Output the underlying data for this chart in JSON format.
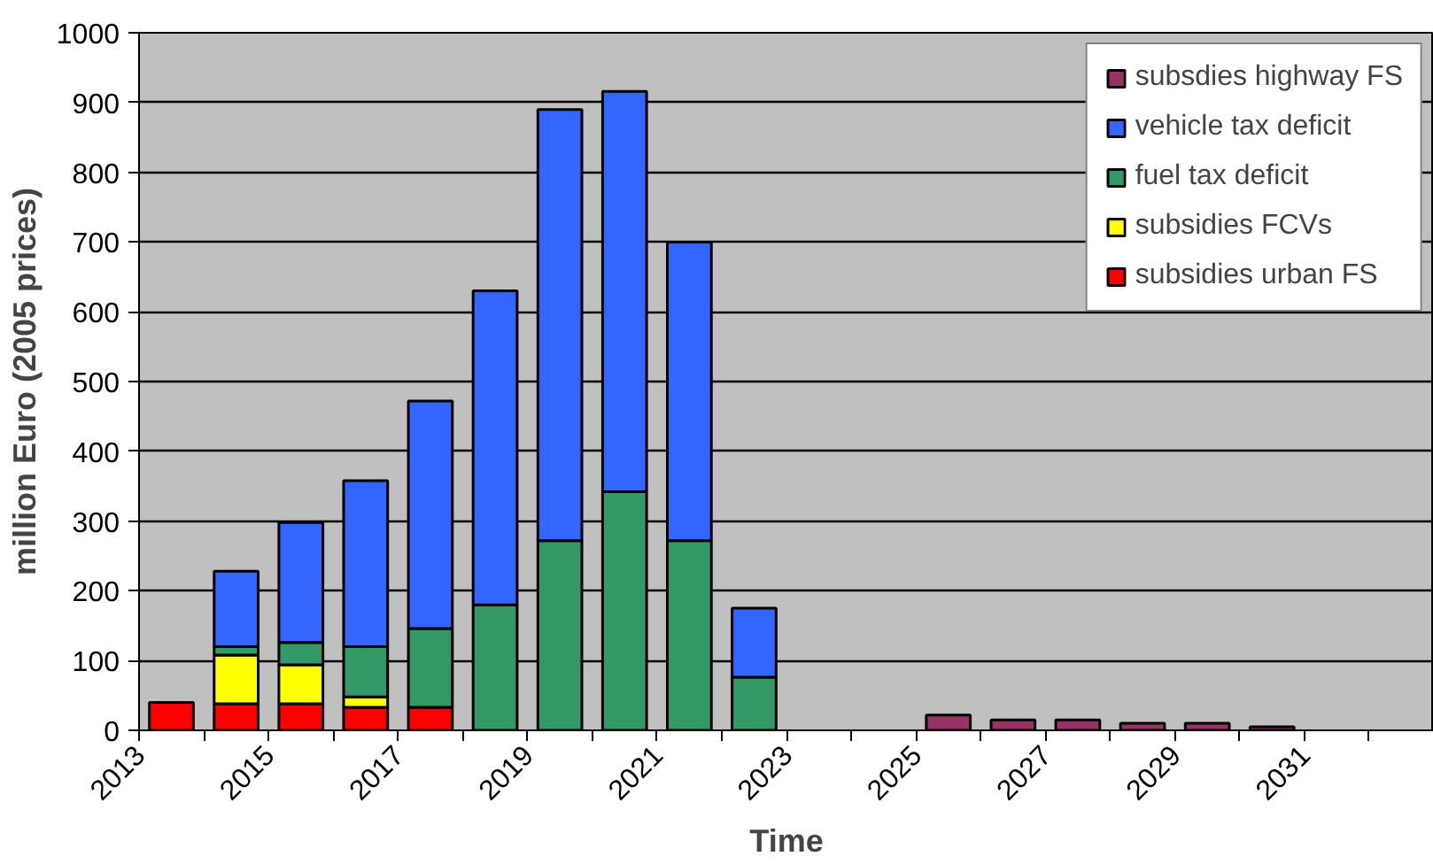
{
  "chart_data": {
    "type": "bar",
    "stacked": true,
    "xlabel": "Time",
    "ylabel": "million Euro (2005 prices)",
    "categories": [
      "2013",
      null,
      "2015",
      null,
      "2017",
      null,
      "2019",
      null,
      "2021",
      null,
      "2023",
      null,
      "2025",
      null,
      "2027",
      null,
      "2029",
      null,
      "2031",
      null
    ],
    "series": [
      {
        "name": "subsidies urban FS",
        "color": "#ff0000",
        "values": [
          40,
          38,
          38,
          33,
          33,
          null,
          null,
          null,
          null,
          null,
          null,
          null,
          null,
          null,
          null,
          null,
          null,
          null,
          null,
          null
        ]
      },
      {
        "name": "subsidies FCVs",
        "color": "#ffff00",
        "values": [
          null,
          70,
          56,
          15,
          null,
          null,
          null,
          null,
          null,
          null,
          null,
          null,
          null,
          null,
          null,
          null,
          null,
          null,
          null,
          null
        ]
      },
      {
        "name": "fuel tax deficit",
        "color": "#339966",
        "values": [
          null,
          12,
          32,
          72,
          113,
          180,
          272,
          342,
          272,
          76,
          null,
          null,
          null,
          null,
          null,
          null,
          null,
          null,
          null,
          null
        ]
      },
      {
        "name": "vehicle tax deficit",
        "color": "#3366ff",
        "values": [
          null,
          108,
          172,
          238,
          326,
          450,
          618,
          574,
          428,
          99,
          null,
          null,
          null,
          null,
          null,
          null,
          null,
          null,
          null,
          null
        ]
      },
      {
        "name": "subsdies highway FS",
        "color": "#993366",
        "values": [
          null,
          null,
          null,
          null,
          null,
          null,
          null,
          null,
          null,
          null,
          null,
          null,
          22,
          15,
          15,
          10,
          10,
          5,
          null,
          null
        ]
      }
    ],
    "ylim": [
      0,
      1000
    ],
    "yticks": [
      0,
      100,
      200,
      300,
      400,
      500,
      600,
      700,
      800,
      900,
      1000
    ],
    "grid": "y",
    "legend": "top right"
  }
}
